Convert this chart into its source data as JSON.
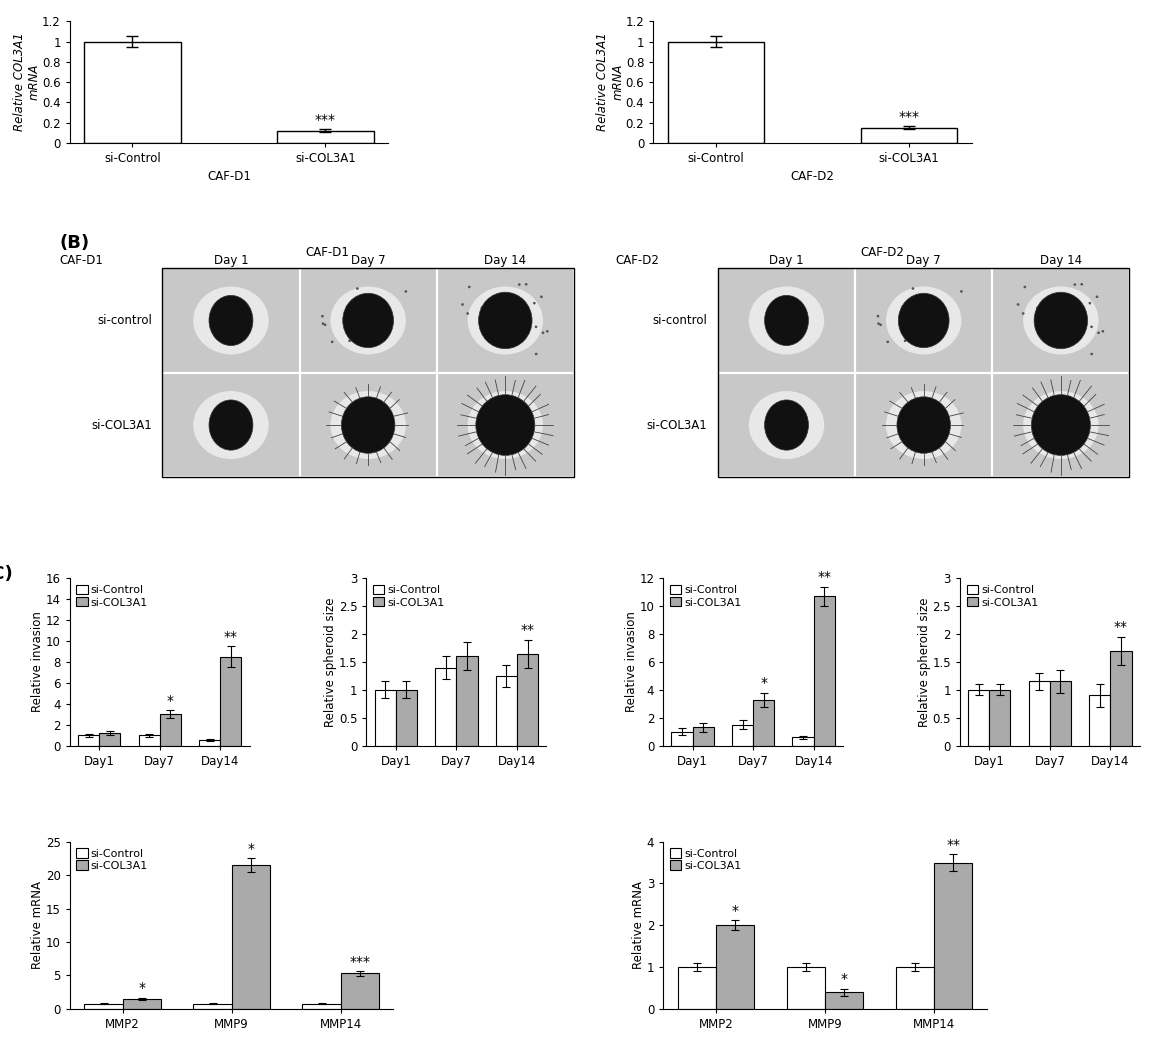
{
  "panel_A_left": {
    "categories": [
      "si-Control",
      "si-COL3A1"
    ],
    "values": [
      1.0,
      0.12
    ],
    "errors": [
      0.05,
      0.012
    ],
    "ylabel": "Relative COL3A1\nmRNA",
    "ylim": [
      0,
      1.2
    ],
    "yticks": [
      0,
      0.2,
      0.4,
      0.6,
      0.8,
      1.0,
      1.2
    ],
    "sig": "***",
    "sig_idx": 1,
    "xlabel": "CAF-D1"
  },
  "panel_A_right": {
    "categories": [
      "si-Control",
      "si-COL3A1"
    ],
    "values": [
      1.0,
      0.15
    ],
    "errors": [
      0.05,
      0.012
    ],
    "ylabel": "Relative COL3A1\nmRNA",
    "ylim": [
      0,
      1.2
    ],
    "yticks": [
      0,
      0.2,
      0.4,
      0.6,
      0.8,
      1.0,
      1.2
    ],
    "sig": "***",
    "sig_idx": 1,
    "xlabel": "CAF-D2"
  },
  "panel_C_invasion_left": {
    "categories": [
      "Day1",
      "Day7",
      "Day14"
    ],
    "ctrl_values": [
      1.0,
      1.0,
      0.5
    ],
    "siRNA_values": [
      1.2,
      3.0,
      8.5
    ],
    "ctrl_errors": [
      0.15,
      0.15,
      0.1
    ],
    "siRNA_errors": [
      0.2,
      0.4,
      1.0
    ],
    "ylabel": "Relative invasion",
    "ylim": [
      0,
      16
    ],
    "yticks": [
      0,
      2,
      4,
      6,
      8,
      10,
      12,
      14,
      16
    ],
    "sigs": {
      "1": "*",
      "2": "**"
    }
  },
  "panel_C_spheroid_left": {
    "categories": [
      "Day1",
      "Day7",
      "Day14"
    ],
    "ctrl_values": [
      1.0,
      1.4,
      1.25
    ],
    "siRNA_values": [
      1.0,
      1.6,
      1.65
    ],
    "ctrl_errors": [
      0.15,
      0.2,
      0.2
    ],
    "siRNA_errors": [
      0.15,
      0.25,
      0.25
    ],
    "ylabel": "Relative spheroid size",
    "ylim": [
      0,
      3
    ],
    "yticks": [
      0,
      0.5,
      1.0,
      1.5,
      2.0,
      2.5,
      3.0
    ],
    "sigs": {
      "2": "**"
    }
  },
  "panel_C_invasion_right": {
    "categories": [
      "Day1",
      "Day7",
      "Day14"
    ],
    "ctrl_values": [
      1.0,
      1.5,
      0.6
    ],
    "siRNA_values": [
      1.3,
      3.3,
      10.7
    ],
    "ctrl_errors": [
      0.25,
      0.3,
      0.1
    ],
    "siRNA_errors": [
      0.3,
      0.5,
      0.7
    ],
    "ylabel": "Relative invasion",
    "ylim": [
      0,
      12
    ],
    "yticks": [
      0,
      2,
      4,
      6,
      8,
      10,
      12
    ],
    "sigs": {
      "1": "*",
      "2": "**"
    }
  },
  "panel_C_spheroid_right": {
    "categories": [
      "Day1",
      "Day7",
      "Day14"
    ],
    "ctrl_values": [
      1.0,
      1.15,
      0.9
    ],
    "siRNA_values": [
      1.0,
      1.15,
      1.7
    ],
    "ctrl_errors": [
      0.1,
      0.15,
      0.2
    ],
    "siRNA_errors": [
      0.1,
      0.2,
      0.25
    ],
    "ylabel": "Relative spheroid size",
    "ylim": [
      0,
      3
    ],
    "yticks": [
      0,
      0.5,
      1.0,
      1.5,
      2.0,
      2.5,
      3.0
    ],
    "sigs": {
      "2": "**"
    }
  },
  "panel_D_left": {
    "categories": [
      "MMP2",
      "MMP9",
      "MMP14"
    ],
    "ctrl_values": [
      0.8,
      0.8,
      0.8
    ],
    "siRNA_values": [
      1.5,
      21.5,
      5.3
    ],
    "ctrl_errors": [
      0.1,
      0.1,
      0.1
    ],
    "siRNA_errors": [
      0.2,
      1.0,
      0.35
    ],
    "ylabel": "Relative mRNA",
    "ylim": [
      0,
      25
    ],
    "yticks": [
      0,
      5,
      10,
      15,
      20,
      25
    ],
    "sigs": {
      "0": "*",
      "1": "*",
      "2": "***"
    }
  },
  "panel_D_right": {
    "categories": [
      "MMP2",
      "MMP9",
      "MMP14"
    ],
    "ctrl_values": [
      1.0,
      1.0,
      1.0
    ],
    "siRNA_values": [
      2.0,
      0.4,
      3.5
    ],
    "ctrl_errors": [
      0.1,
      0.1,
      0.1
    ],
    "siRNA_errors": [
      0.12,
      0.08,
      0.2
    ],
    "ylabel": "Relative mRNA",
    "ylim": [
      0,
      4
    ],
    "yticks": [
      0,
      1,
      2,
      3,
      4
    ],
    "sigs": {
      "0": "*",
      "1": "*",
      "2": "**"
    }
  },
  "colors": {
    "ctrl_bar": "#ffffff",
    "siRNA_bar": "#aaaaaa",
    "edge": "#000000"
  },
  "bar_width": 0.35,
  "label_fontsize": 8.5,
  "tick_fontsize": 8.5,
  "legend_fontsize": 8,
  "sig_fontsize": 10,
  "panel_label_fontsize": 13
}
